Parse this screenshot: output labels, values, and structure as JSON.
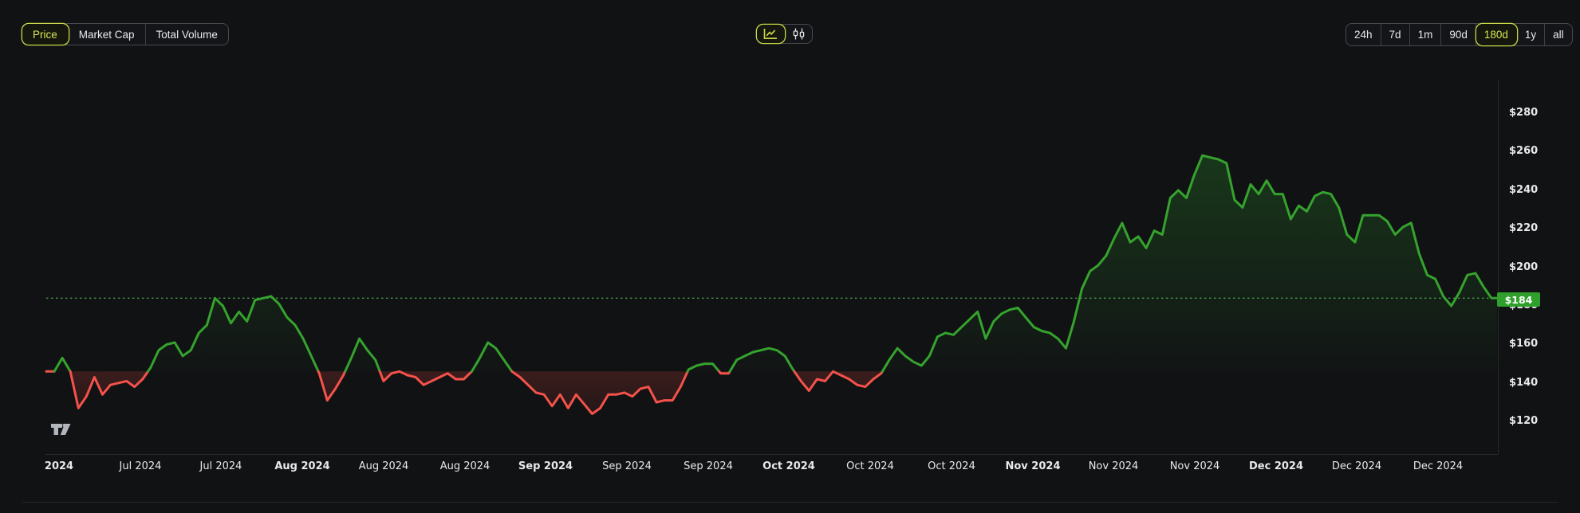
{
  "toolbar": {
    "metric_tabs": [
      {
        "label": "Price",
        "selected": true
      },
      {
        "label": "Market Cap",
        "selected": false
      },
      {
        "label": "Total Volume",
        "selected": false
      }
    ],
    "chart_type_buttons": [
      {
        "icon": "line-chart",
        "selected": true
      },
      {
        "icon": "candlestick-chart",
        "selected": false
      }
    ],
    "range_tabs": [
      {
        "label": "24h",
        "selected": false
      },
      {
        "label": "7d",
        "selected": false
      },
      {
        "label": "1m",
        "selected": false
      },
      {
        "label": "90d",
        "selected": false
      },
      {
        "label": "180d",
        "selected": true
      },
      {
        "label": "1y",
        "selected": false
      },
      {
        "label": "all",
        "selected": false
      }
    ]
  },
  "chart_data": {
    "type": "line",
    "metric": "Price",
    "range": "180d",
    "current_price_label": "$184",
    "current_price": 184,
    "baseline_price": 146,
    "ylim": [
      113,
      292
    ],
    "grid": false,
    "legend": "none",
    "y_ticks": [
      {
        "label": "$280",
        "price": 280
      },
      {
        "label": "$260",
        "price": 260
      },
      {
        "label": "$240",
        "price": 240
      },
      {
        "label": "$220",
        "price": 220
      },
      {
        "label": "$200",
        "price": 200
      },
      {
        "label": "$180",
        "price": 180
      },
      {
        "label": "$160",
        "price": 160
      },
      {
        "label": "$140",
        "price": 140
      },
      {
        "label": "$120",
        "price": 120
      }
    ],
    "x_labels": [
      {
        "label": "2024",
        "bold": true
      },
      {
        "label": "Jul 2024",
        "bold": false
      },
      {
        "label": "Jul 2024",
        "bold": false
      },
      {
        "label": "Aug 2024",
        "bold": true
      },
      {
        "label": "Aug 2024",
        "bold": false
      },
      {
        "label": "Aug 2024",
        "bold": false
      },
      {
        "label": "Sep 2024",
        "bold": true
      },
      {
        "label": "Sep 2024",
        "bold": false
      },
      {
        "label": "Sep 2024",
        "bold": false
      },
      {
        "label": "Oct 2024",
        "bold": true
      },
      {
        "label": "Oct 2024",
        "bold": false
      },
      {
        "label": "Oct 2024",
        "bold": false
      },
      {
        "label": "Nov 2024",
        "bold": true
      },
      {
        "label": "Nov 2024",
        "bold": false
      },
      {
        "label": "Nov 2024",
        "bold": false
      },
      {
        "label": "Dec 2024",
        "bold": true
      },
      {
        "label": "Dec 2024",
        "bold": false
      },
      {
        "label": "Dec 2024",
        "bold": false
      }
    ],
    "colors": {
      "up": "#35a32d",
      "down": "#f4524a",
      "accent": "#c8d748",
      "badge": "#30a02c",
      "dotted_line": "#57b757"
    },
    "series": [
      {
        "name": "price_usd",
        "values": [
          146,
          146,
          153,
          146,
          127,
          133,
          143,
          134,
          139,
          140,
          141,
          138,
          142,
          148,
          157,
          160,
          161,
          154,
          157,
          166,
          170,
          184,
          180,
          171,
          177,
          172,
          183,
          184,
          185,
          181,
          174,
          170,
          163,
          154,
          145,
          131,
          137,
          144,
          153,
          163,
          157,
          152,
          141,
          145,
          146,
          144,
          143,
          139,
          141,
          143,
          145,
          142,
          142,
          146,
          153,
          161,
          158,
          152,
          146,
          143,
          139,
          135,
          134,
          128,
          134,
          127,
          134,
          129,
          124,
          127,
          134,
          134,
          135,
          133,
          137,
          138,
          130,
          131,
          131,
          138,
          147,
          149,
          150,
          150,
          145,
          145,
          152,
          154,
          156,
          157,
          158,
          157,
          154,
          147,
          141,
          136,
          142,
          141,
          146,
          144,
          142,
          139,
          138,
          142,
          145,
          152,
          158,
          154,
          151,
          149,
          154,
          164,
          166,
          165,
          169,
          173,
          177,
          163,
          172,
          176,
          178,
          179,
          174,
          169,
          167,
          166,
          163,
          158,
          172,
          189,
          198,
          201,
          206,
          215,
          223,
          213,
          216,
          210,
          219,
          217,
          236,
          240,
          236,
          248,
          258,
          257,
          256,
          254,
          235,
          231,
          243,
          238,
          245,
          238,
          238,
          225,
          232,
          229,
          237,
          239,
          238,
          231,
          217,
          213,
          227,
          227,
          227,
          224,
          217,
          221,
          223,
          207,
          196,
          194,
          185,
          180,
          187,
          196,
          197,
          190,
          184
        ]
      }
    ]
  },
  "watermark": {
    "name": "TradingView"
  }
}
